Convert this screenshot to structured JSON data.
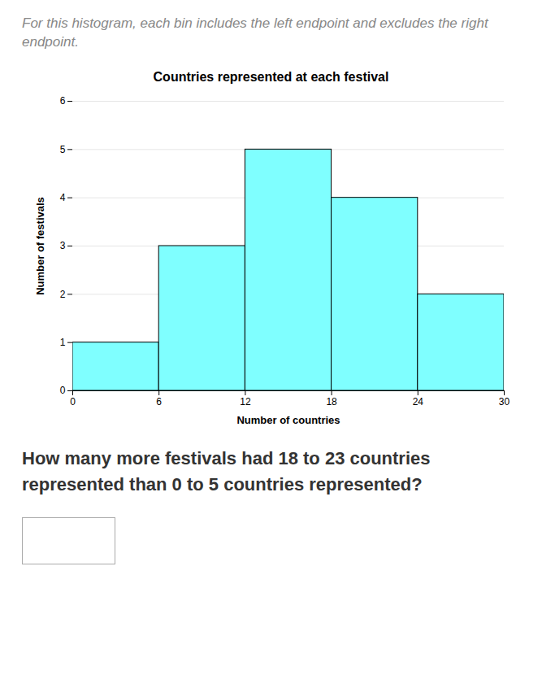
{
  "chart_data": {
    "type": "histogram",
    "title": "Countries represented at each festival",
    "subtitle": "For this histogram, each bin includes the left endpoint and excludes the right endpoint.",
    "annotations": [
      "How many more festivals had 18 to 23 countries represented than 0 to 5 countries represented?"
    ],
    "xlabel": "Number of countries",
    "ylabel": "Number of festivals",
    "bins": [
      0,
      6,
      12,
      18,
      24,
      30
    ],
    "values": [
      1,
      3,
      5,
      4,
      2
    ],
    "color": "#7FFFFF",
    "xlim": [
      0,
      30
    ],
    "ylim": [
      0,
      6
    ],
    "xticks": [
      0,
      6,
      12,
      18,
      24,
      30
    ],
    "yticks": [
      0,
      1,
      2,
      3,
      4,
      5,
      6
    ],
    "grid": "y"
  }
}
